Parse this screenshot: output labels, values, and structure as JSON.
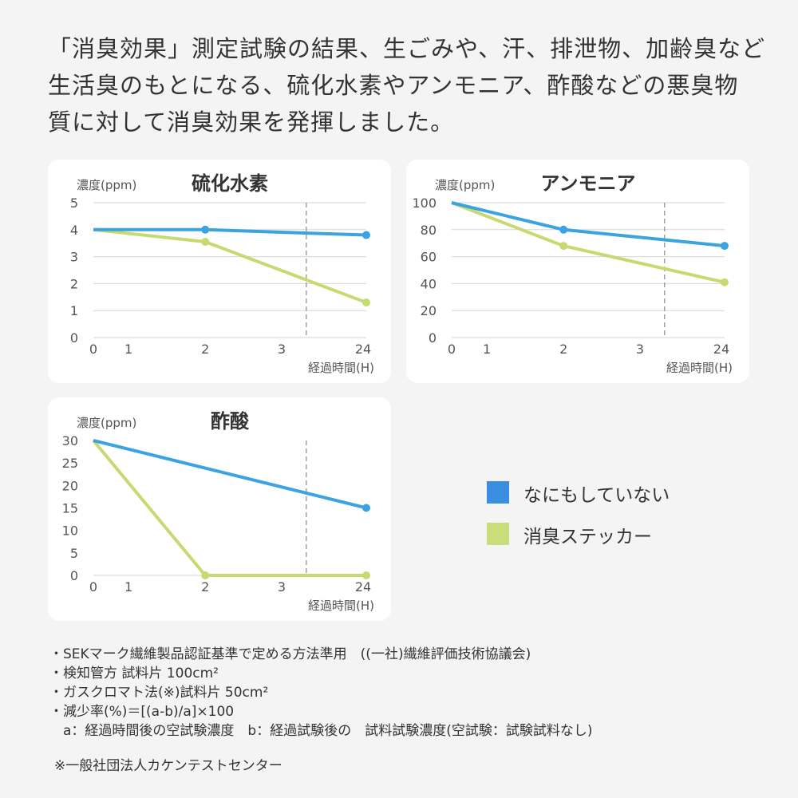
{
  "intro": [
    "「消臭効果」測定試験の結果、生ごみや、汗、排泄物、加齢臭など",
    "生活臭のもとになる、硫化水素やアンモニア、酢酸などの悪臭物",
    "質に対して消臭効果を発揮しました。"
  ],
  "colors": {
    "none": "#3aa3e0",
    "sticker": "#c5db72",
    "legend_none": "#3a8ee0",
    "legend_sticker": "#c9dd7a",
    "grid": "#d6d6d6",
    "break_line": "#a0a0a0"
  },
  "legend": [
    {
      "label": "なにもしていない",
      "series": "none"
    },
    {
      "label": "消臭ステッカー",
      "series": "sticker"
    }
  ],
  "chart_data": [
    {
      "type": "line",
      "title": "硫化水素",
      "ylabel": "濃度(ppm)",
      "xlabel": "経過時間(H)",
      "x_ticks": [
        "0",
        "1",
        "2",
        "3",
        "24"
      ],
      "y_ticks": [
        "0",
        "1",
        "2",
        "3",
        "4",
        "5"
      ],
      "ylim": [
        0,
        5
      ],
      "grid": true,
      "axis_break_between": [
        "3",
        "24"
      ],
      "series": [
        {
          "key": "none",
          "x": [
            "0",
            "2",
            "24"
          ],
          "values": [
            4.0,
            4.0,
            3.8
          ]
        },
        {
          "key": "sticker",
          "x": [
            "0",
            "2",
            "24"
          ],
          "values": [
            4.0,
            3.55,
            1.3
          ]
        }
      ]
    },
    {
      "type": "line",
      "title": "アンモニア",
      "ylabel": "濃度(ppm)",
      "xlabel": "経過時間(H)",
      "x_ticks": [
        "0",
        "1",
        "2",
        "3",
        "24"
      ],
      "y_ticks": [
        "0",
        "20",
        "40",
        "60",
        "80",
        "100"
      ],
      "ylim": [
        0,
        100
      ],
      "grid": true,
      "axis_break_between": [
        "3",
        "24"
      ],
      "series": [
        {
          "key": "none",
          "x": [
            "0",
            "2",
            "24"
          ],
          "values": [
            100,
            80,
            68
          ]
        },
        {
          "key": "sticker",
          "x": [
            "0",
            "2",
            "24"
          ],
          "values": [
            100,
            68,
            41
          ]
        }
      ]
    },
    {
      "type": "line",
      "title": "酢酸",
      "ylabel": "濃度(ppm)",
      "xlabel": "経過時間(H)",
      "x_ticks": [
        "0",
        "1",
        "2",
        "3",
        "24"
      ],
      "y_ticks": [
        "0",
        "5",
        "10",
        "15",
        "20",
        "25",
        "30"
      ],
      "ylim": [
        0,
        30
      ],
      "grid": false,
      "axis_break_between": [
        "3",
        "24"
      ],
      "series": [
        {
          "key": "none",
          "x": [
            "0",
            "24"
          ],
          "values": [
            30,
            15
          ],
          "markers": [
            "24"
          ]
        },
        {
          "key": "sticker",
          "x": [
            "0",
            "2",
            "24"
          ],
          "values": [
            30,
            0,
            0
          ]
        }
      ]
    }
  ],
  "notes": [
    "・SEKマーク繊維製品認証基準で定める方法準用　((一社)繊維評価技術協議会)",
    "・検知管方 試料片 100cm²",
    "・ガスクロマト法(※)試料片 50cm²",
    "・減少率(%)＝[(a-b)/a]×100",
    "　a：経過時間後の空試験濃度　b：経過試験後の　試料試験濃度(空試験：試験試料なし)"
  ],
  "source": "※一般社団法人カケンテストセンター"
}
